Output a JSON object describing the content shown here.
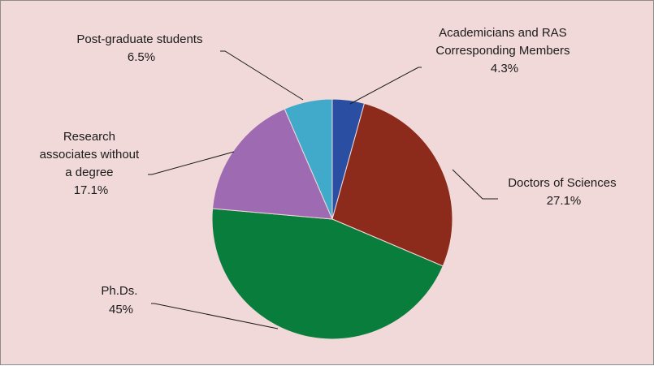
{
  "chart_data": {
    "type": "pie",
    "title": "",
    "legend": "none",
    "slices": [
      {
        "label": "Academicians and RAS Corresponding Members",
        "value": 4.3,
        "display": "4.3%",
        "color": "#2a4fa2"
      },
      {
        "label": "Doctors of Sciences",
        "value": 27.1,
        "display": "27.1%",
        "color": "#8c2a1c"
      },
      {
        "label": "Ph.Ds.",
        "value": 45,
        "display": "45%",
        "color": "#087d3c"
      },
      {
        "label": "Research associates without a degree",
        "value": 17.1,
        "display": "17.1%",
        "color": "#9e6bb2"
      },
      {
        "label": "Post-graduate students",
        "value": 6.5,
        "display": "6.5%",
        "color": "#41aacb"
      }
    ]
  },
  "labels": {
    "academicians": {
      "line1": "Academicians and RAS",
      "line2": "Corresponding Members",
      "pct": "4.3%"
    },
    "doctors": {
      "line1": "Doctors of Sciences",
      "pct": "27.1%"
    },
    "phds": {
      "line1": "Ph.Ds.",
      "pct": "45%"
    },
    "research": {
      "line1": "Research",
      "line2": "associates without",
      "line3": "a degree",
      "pct": "17.1%"
    },
    "postgrad": {
      "line1": "Post-graduate students",
      "pct": "6.5%"
    }
  }
}
